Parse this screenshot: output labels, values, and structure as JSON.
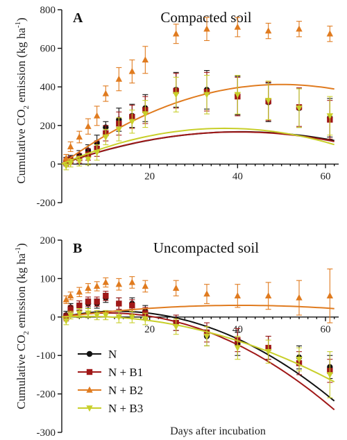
{
  "figure": {
    "xlabel": "Days after incubation",
    "ylabel_main": "Cumulative CO",
    "ylabel_sub": "2",
    "ylabel_tail": " emission (kg ha",
    "ylabel_sup": "-1",
    "ylabel_end": ")"
  },
  "colors": {
    "N": "#111111",
    "N + B1": "#a01818",
    "N + B2": "#e07b1f",
    "N + B3": "#c8cf2a"
  },
  "legend": {
    "placement": "bottom-left of panel B",
    "items": [
      {
        "label": "N",
        "marker": "circle"
      },
      {
        "label": "N + B1",
        "marker": "square"
      },
      {
        "label": "N + B2",
        "marker": "triangle-up"
      },
      {
        "label": "N + B3",
        "marker": "triangle-down"
      }
    ]
  },
  "chart_data": [
    {
      "type": "scatter",
      "panel_label": "A",
      "title": "Compacted soil",
      "xlabel": "",
      "ylabel": "Cumulative CO2 emission (kg ha-1)",
      "xlim": [
        0,
        63
      ],
      "ylim": [
        -200,
        800
      ],
      "yticks": [
        -200,
        0,
        200,
        400,
        600,
        800
      ],
      "xticks": [
        20,
        40,
        60
      ],
      "x": [
        1,
        2,
        4,
        6,
        8,
        10,
        13,
        16,
        19,
        26,
        33,
        40,
        47,
        54,
        61
      ],
      "series": [
        {
          "name": "N",
          "marker": "circle",
          "values": [
            15,
            25,
            45,
            70,
            110,
            190,
            230,
            250,
            290,
            385,
            385,
            355,
            320,
            290,
            240
          ],
          "errors": [
            20,
            20,
            25,
            30,
            40,
            30,
            60,
            60,
            70,
            90,
            100,
            100,
            100,
            100,
            100
          ],
          "fit": [
            8.2,
            -0.1005
          ]
        },
        {
          "name": "N + B1",
          "marker": "square",
          "values": [
            10,
            20,
            30,
            50,
            80,
            160,
            210,
            245,
            280,
            380,
            375,
            350,
            325,
            295,
            230
          ],
          "errors": [
            20,
            20,
            25,
            30,
            40,
            40,
            60,
            60,
            70,
            90,
            100,
            100,
            100,
            100,
            100
          ],
          "fit": [
            8.3,
            -0.1035
          ]
        },
        {
          "name": "N + B2",
          "marker": "triangle-up",
          "values": [
            30,
            90,
            140,
            195,
            250,
            365,
            440,
            480,
            540,
            675,
            700,
            710,
            690,
            700,
            675
          ],
          "errors": [
            20,
            25,
            30,
            40,
            50,
            40,
            60,
            60,
            70,
            50,
            60,
            50,
            40,
            40,
            40
          ],
          "fit": [
            16.5,
            -0.165
          ]
        },
        {
          "name": "N + B3",
          "marker": "triangle-down",
          "values": [
            -10,
            5,
            15,
            25,
            60,
            140,
            180,
            220,
            260,
            360,
            360,
            360,
            330,
            290,
            250
          ],
          "errors": [
            20,
            20,
            25,
            30,
            40,
            40,
            60,
            60,
            70,
            90,
            100,
            100,
            100,
            100,
            100
          ],
          "fit": [
            10.0,
            -0.135
          ]
        }
      ]
    },
    {
      "type": "scatter",
      "panel_label": "B",
      "title": "Uncompacted soil",
      "xlabel": "Days after incubation",
      "ylabel": "Cumulative CO2 emission (kg ha-1)",
      "xlim": [
        0,
        63
      ],
      "ylim": [
        -300,
        200
      ],
      "yticks": [
        -300,
        -200,
        -100,
        0,
        100,
        200
      ],
      "xticks": [
        20,
        40,
        60
      ],
      "x": [
        1,
        2,
        4,
        6,
        8,
        10,
        13,
        16,
        19,
        26,
        33,
        40,
        47,
        54,
        61
      ],
      "series": [
        {
          "name": "N",
          "marker": "circle",
          "values": [
            5,
            25,
            30,
            35,
            35,
            50,
            35,
            35,
            15,
            -15,
            -50,
            -70,
            -80,
            -105,
            -130
          ],
          "errors": [
            10,
            10,
            12,
            12,
            12,
            12,
            15,
            15,
            15,
            20,
            25,
            30,
            30,
            30,
            30
          ],
          "fit": [
            2.4,
            -0.0955
          ]
        },
        {
          "name": "N + B1",
          "marker": "square",
          "values": [
            0,
            20,
            30,
            40,
            40,
            55,
            35,
            30,
            10,
            -15,
            -40,
            -60,
            -80,
            -120,
            -140
          ],
          "errors": [
            10,
            10,
            12,
            12,
            12,
            12,
            15,
            15,
            15,
            20,
            25,
            30,
            30,
            30,
            30
          ],
          "fit": [
            2.0,
            -0.095
          ]
        },
        {
          "name": "N + B2",
          "marker": "triangle-up",
          "values": [
            45,
            55,
            65,
            75,
            80,
            90,
            85,
            90,
            80,
            75,
            60,
            55,
            55,
            50,
            55
          ],
          "errors": [
            10,
            10,
            12,
            12,
            12,
            12,
            15,
            15,
            15,
            20,
            25,
            30,
            35,
            45,
            70
          ],
          "fit": [
            1.5,
            -0.0185
          ]
        },
        {
          "name": "N + B3",
          "marker": "triangle-down",
          "values": [
            -10,
            5,
            10,
            10,
            5,
            5,
            0,
            0,
            -5,
            -25,
            -50,
            -80,
            -90,
            -110,
            -150
          ],
          "errors": [
            10,
            10,
            12,
            12,
            12,
            12,
            15,
            15,
            15,
            20,
            25,
            30,
            30,
            30,
            60
          ],
          "fit": [
            0.6,
            -0.0535
          ]
        }
      ]
    }
  ]
}
